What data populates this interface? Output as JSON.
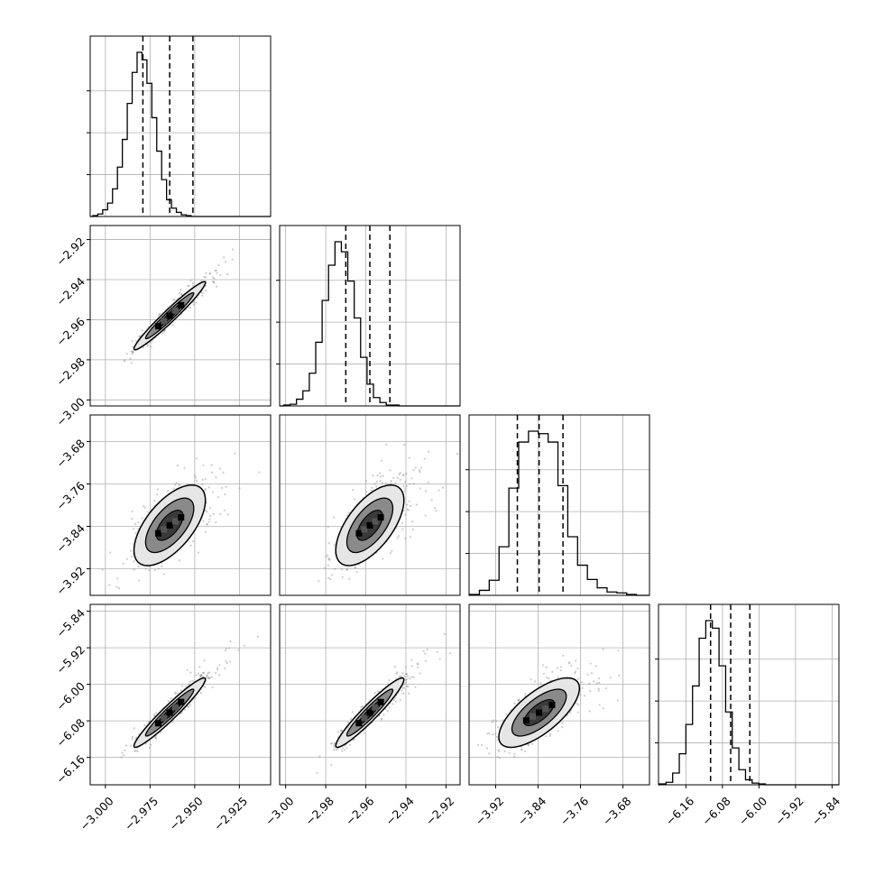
{
  "chart_data": {
    "type": "corner",
    "parameters": [
      {
        "range": [
          -3.0085,
          -2.9075
        ],
        "ticks": [
          "−3.000",
          "−2.975",
          "−2.950",
          "−2.925"
        ],
        "tick_values": [
          -3.0,
          -2.975,
          -2.95,
          -2.925
        ],
        "quantiles": [
          -2.979,
          -2.964,
          -2.951
        ],
        "hist_x0": -3.007,
        "hist_dx": 0.00275,
        "hist": [
          1,
          3,
          8,
          16,
          33,
          59,
          92,
          135,
          172,
          196,
          187,
          159,
          118,
          78,
          44,
          20,
          10,
          5,
          2,
          1
        ]
      },
      {
        "range": [
          -3.003,
          -2.913
        ],
        "ticks": [
          "−3.00",
          "−2.98",
          "−2.96",
          "−2.94",
          "−2.92"
        ],
        "tick_values": [
          -3.0,
          -2.98,
          -2.96,
          -2.94,
          -2.92
        ],
        "quantiles": [
          -2.97,
          -2.958,
          -2.948
        ],
        "hist_x0": -3.001,
        "hist_dx": 0.0032,
        "hist": [
          1,
          2,
          8,
          18,
          39,
          76,
          126,
          168,
          196,
          184,
          149,
          105,
          58,
          26,
          10,
          4,
          1,
          1
        ]
      },
      {
        "range": [
          -3.97,
          -3.63
        ],
        "ticks": [
          "−3.92",
          "−3.84",
          "−3.76",
          "−3.68"
        ],
        "tick_values": [
          -3.92,
          -3.84,
          -3.76,
          -3.68
        ],
        "quantiles": [
          -3.879,
          -3.838,
          -3.793
        ],
        "hist_x0": -3.969,
        "hist_dx": 0.0185,
        "hist": [
          1,
          6,
          18,
          58,
          128,
          183,
          196,
          193,
          183,
          131,
          70,
          36,
          19,
          9,
          4,
          3,
          1
        ]
      },
      {
        "range": [
          -6.22,
          -5.825
        ],
        "ticks": [
          "−6.16",
          "−6.08",
          "−6.00",
          "−5.92",
          "−5.84"
        ],
        "tick_values": [
          -6.16,
          -6.08,
          -6.0,
          -5.92,
          -5.84
        ],
        "quantiles": [
          -6.106,
          -6.062,
          -6.02
        ],
        "hist_x0": -6.218,
        "hist_dx": 0.0145,
        "hist": [
          1,
          3,
          14,
          37,
          72,
          118,
          175,
          196,
          187,
          142,
          87,
          44,
          18,
          6,
          2,
          1
        ]
      }
    ],
    "row_ticks": {
      "1": [
        "−3.00",
        "−2.98",
        "−2.96",
        "−2.94",
        "−2.92"
      ],
      "2": [
        "−3.92",
        "−3.84",
        "−3.76",
        "−3.68"
      ],
      "3": [
        "−6.16",
        "−6.08",
        "−6.00",
        "−5.92",
        "−5.84"
      ]
    },
    "pairs": [
      {
        "row": 1,
        "col": 0,
        "mean": [
          -2.964,
          -2.958
        ],
        "sd": [
          0.01,
          0.0085
        ],
        "rho": 0.97
      },
      {
        "row": 2,
        "col": 0,
        "mean": [
          -2.964,
          -3.838
        ],
        "sd": [
          0.01,
          0.038
        ],
        "rho": 0.62
      },
      {
        "row": 2,
        "col": 1,
        "mean": [
          -2.958,
          -3.838
        ],
        "sd": [
          0.0085,
          0.038
        ],
        "rho": 0.62
      },
      {
        "row": 3,
        "col": 0,
        "mean": [
          -2.964,
          -6.062
        ],
        "sd": [
          0.01,
          0.038
        ],
        "rho": 0.96
      },
      {
        "row": 3,
        "col": 1,
        "mean": [
          -2.958,
          -6.062
        ],
        "sd": [
          0.0085,
          0.038
        ],
        "rho": 0.95
      },
      {
        "row": 3,
        "col": 2,
        "mean": [
          -3.838,
          -6.062
        ],
        "sd": [
          0.038,
          0.038
        ],
        "rho": 0.7
      }
    ],
    "grid": true,
    "quantile_style": "dashed",
    "colors": {
      "line": "#000000",
      "scatter": "#8c8c8c",
      "grid": "#b0b0b0",
      "contour_fill_1": "#e6e6e6",
      "contour_fill_2": "#8a8a8a",
      "contour_fill_3": "#3a3a3a"
    }
  }
}
